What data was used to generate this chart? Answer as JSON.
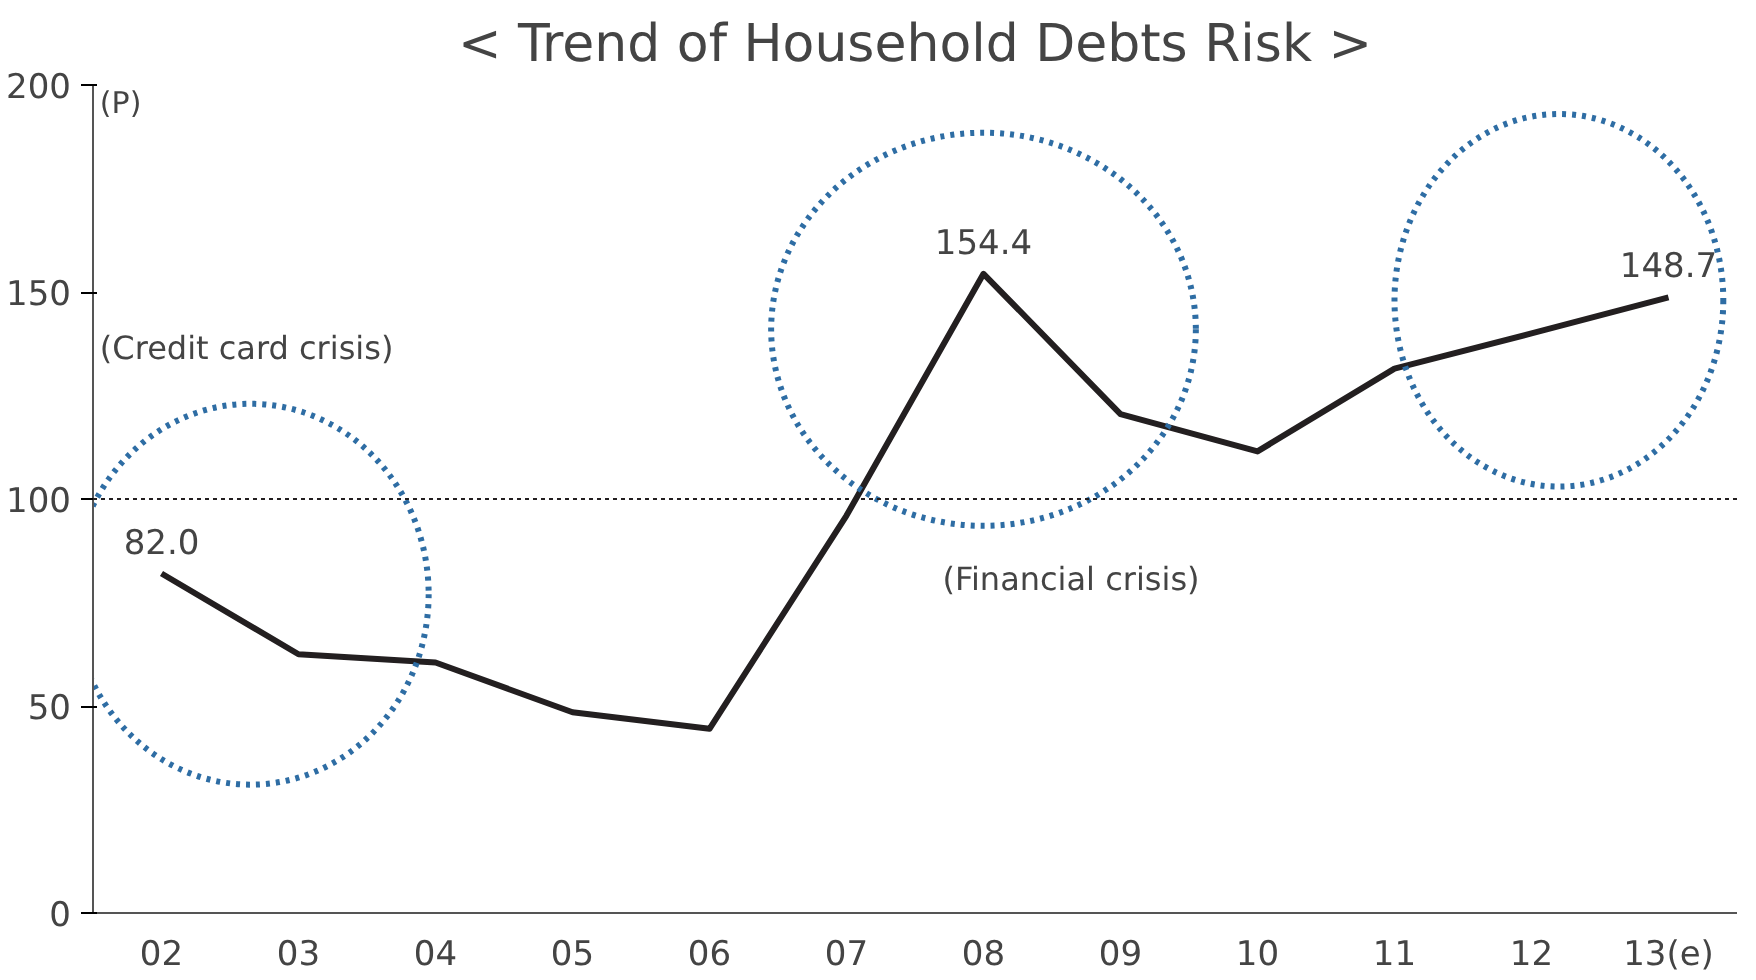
{
  "chart_data": {
    "type": "line",
    "title": "< Trend of Household Debts Risk >",
    "ylabel": "(P)",
    "categories": [
      "02",
      "03",
      "04",
      "05",
      "06",
      "07",
      "08",
      "09",
      "10",
      "11",
      "12",
      "13(e)"
    ],
    "series": [
      {
        "color": "#231f20",
        "values": [
          82.0,
          62.5,
          60.5,
          48.5,
          44.5,
          96,
          154.4,
          120.5,
          111.5,
          131.5,
          140,
          148.7
        ],
        "value_labels": [
          "82.0",
          null,
          null,
          null,
          null,
          null,
          "154.4",
          null,
          null,
          null,
          null,
          "148.7"
        ]
      }
    ],
    "ylim": [
      0,
      200
    ],
    "yticks": [
      0,
      50,
      100,
      150,
      200
    ],
    "grid": false,
    "marker": "none",
    "line_style": "solid",
    "ref_lines": [
      {
        "axis": "y",
        "value": 100,
        "line_style": "dashed",
        "color": "#231f20"
      }
    ],
    "annotations": [
      "(Credit card crisis)",
      "(Financial crisis)"
    ]
  }
}
